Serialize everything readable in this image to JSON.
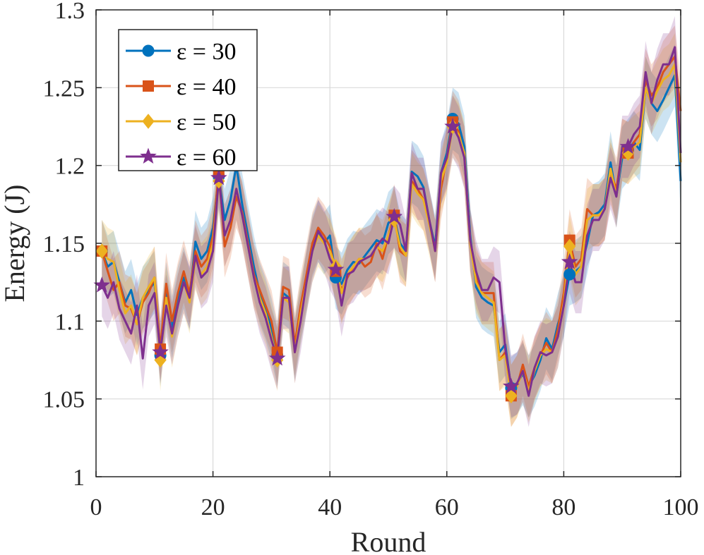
{
  "chart_data": {
    "type": "line",
    "title": "",
    "xlabel": "Round",
    "ylabel": "Energy (J)",
    "xlim": [
      0,
      100
    ],
    "ylim": [
      1,
      1.3
    ],
    "xticks": [
      0,
      20,
      40,
      60,
      80,
      100
    ],
    "xtick_labels": [
      "0",
      "20",
      "40",
      "60",
      "80",
      "100"
    ],
    "yticks": [
      1,
      1.05,
      1.1,
      1.15,
      1.2,
      1.25,
      1.3
    ],
    "ytick_labels": [
      "1",
      "1.05",
      "1.1",
      "1.15",
      "1.2",
      "1.25",
      "1.3"
    ],
    "grid": true,
    "legend_position": "top-left",
    "x": [
      1,
      2,
      3,
      4,
      5,
      6,
      7,
      8,
      9,
      10,
      11,
      12,
      13,
      14,
      15,
      16,
      17,
      18,
      19,
      20,
      21,
      22,
      23,
      24,
      25,
      26,
      27,
      28,
      29,
      30,
      31,
      32,
      33,
      34,
      35,
      36,
      37,
      38,
      39,
      40,
      41,
      42,
      43,
      44,
      45,
      46,
      47,
      48,
      49,
      50,
      51,
      52,
      53,
      54,
      55,
      56,
      57,
      58,
      59,
      60,
      61,
      62,
      63,
      64,
      65,
      66,
      67,
      68,
      69,
      70,
      71,
      72,
      73,
      74,
      75,
      76,
      77,
      78,
      79,
      80,
      81,
      82,
      83,
      84,
      85,
      86,
      87,
      88,
      89,
      90,
      91,
      92,
      93,
      94,
      95,
      96,
      97,
      98,
      99,
      100
    ],
    "marker_rounds": [
      1,
      11,
      21,
      31,
      41,
      51,
      61,
      71,
      81,
      91
    ],
    "series": [
      {
        "name": "ε = 30",
        "color": "#0072BD",
        "marker": "circle",
        "values": [
          1.145,
          1.135,
          1.138,
          1.125,
          1.112,
          1.12,
          1.104,
          1.115,
          1.12,
          1.125,
          1.078,
          1.118,
          1.096,
          1.115,
          1.128,
          1.114,
          1.151,
          1.14,
          1.145,
          1.16,
          1.193,
          1.165,
          1.178,
          1.2,
          1.175,
          1.155,
          1.135,
          1.118,
          1.108,
          1.095,
          1.078,
          1.118,
          1.115,
          1.082,
          1.106,
          1.126,
          1.148,
          1.158,
          1.15,
          1.155,
          1.128,
          1.124,
          1.133,
          1.138,
          1.137,
          1.142,
          1.147,
          1.152,
          1.15,
          1.163,
          1.167,
          1.15,
          1.145,
          1.196,
          1.193,
          1.186,
          1.165,
          1.148,
          1.195,
          1.208,
          1.23,
          1.227,
          1.212,
          1.155,
          1.122,
          1.115,
          1.112,
          1.11,
          1.08,
          1.085,
          1.057,
          1.06,
          1.066,
          1.058,
          1.065,
          1.075,
          1.089,
          1.082,
          1.098,
          1.11,
          1.13,
          1.132,
          1.135,
          1.15,
          1.168,
          1.17,
          1.175,
          1.202,
          1.18,
          1.205,
          1.21,
          1.215,
          1.21,
          1.25,
          1.24,
          1.235,
          1.242,
          1.25,
          1.258,
          1.19
        ]
      },
      {
        "name": "ε = 40",
        "color": "#D95319",
        "marker": "square",
        "values": [
          1.145,
          1.132,
          1.12,
          1.125,
          1.11,
          1.108,
          1.098,
          1.112,
          1.118,
          1.128,
          1.082,
          1.124,
          1.1,
          1.118,
          1.132,
          1.118,
          1.145,
          1.135,
          1.14,
          1.155,
          1.196,
          1.148,
          1.16,
          1.18,
          1.17,
          1.15,
          1.13,
          1.12,
          1.11,
          1.1,
          1.08,
          1.122,
          1.12,
          1.085,
          1.11,
          1.13,
          1.15,
          1.16,
          1.155,
          1.148,
          1.132,
          1.12,
          1.128,
          1.135,
          1.14,
          1.135,
          1.138,
          1.15,
          1.14,
          1.155,
          1.168,
          1.145,
          1.142,
          1.19,
          1.185,
          1.178,
          1.165,
          1.145,
          1.185,
          1.205,
          1.228,
          1.222,
          1.205,
          1.152,
          1.128,
          1.118,
          1.118,
          1.118,
          1.075,
          1.08,
          1.052,
          1.058,
          1.072,
          1.058,
          1.07,
          1.078,
          1.086,
          1.08,
          1.095,
          1.118,
          1.152,
          1.135,
          1.14,
          1.172,
          1.168,
          1.168,
          1.172,
          1.195,
          1.185,
          1.21,
          1.208,
          1.215,
          1.22,
          1.255,
          1.245,
          1.25,
          1.26,
          1.265,
          1.27,
          1.235
        ]
      },
      {
        "name": "ε = 50",
        "color": "#EDB120",
        "marker": "diamond",
        "values": [
          1.145,
          1.14,
          1.138,
          1.12,
          1.105,
          1.11,
          1.098,
          1.115,
          1.122,
          1.128,
          1.075,
          1.115,
          1.09,
          1.11,
          1.125,
          1.112,
          1.14,
          1.13,
          1.135,
          1.15,
          1.19,
          1.155,
          1.165,
          1.185,
          1.168,
          1.148,
          1.128,
          1.115,
          1.105,
          1.09,
          1.075,
          1.115,
          1.112,
          1.08,
          1.105,
          1.125,
          1.145,
          1.155,
          1.15,
          1.145,
          1.135,
          1.118,
          1.13,
          1.135,
          1.14,
          1.14,
          1.142,
          1.148,
          1.145,
          1.155,
          1.165,
          1.148,
          1.142,
          1.188,
          1.182,
          1.178,
          1.162,
          1.145,
          1.19,
          1.202,
          1.225,
          1.22,
          1.208,
          1.15,
          1.125,
          1.118,
          1.115,
          1.112,
          1.075,
          1.078,
          1.052,
          1.058,
          1.068,
          1.055,
          1.068,
          1.078,
          1.082,
          1.08,
          1.09,
          1.112,
          1.148,
          1.13,
          1.135,
          1.165,
          1.168,
          1.168,
          1.172,
          1.198,
          1.18,
          1.21,
          1.208,
          1.212,
          1.215,
          1.25,
          1.24,
          1.248,
          1.255,
          1.258,
          1.265,
          1.202
        ]
      },
      {
        "name": "ε = 60",
        "color": "#7E2F8E",
        "marker": "star",
        "values": [
          1.123,
          1.115,
          1.125,
          1.108,
          1.1,
          1.092,
          1.11,
          1.076,
          1.11,
          1.118,
          1.08,
          1.11,
          1.092,
          1.11,
          1.125,
          1.115,
          1.142,
          1.128,
          1.132,
          1.145,
          1.192,
          1.155,
          1.165,
          1.185,
          1.168,
          1.148,
          1.128,
          1.112,
          1.102,
          1.088,
          1.076,
          1.115,
          1.115,
          1.08,
          1.1,
          1.125,
          1.145,
          1.158,
          1.152,
          1.14,
          1.133,
          1.11,
          1.13,
          1.132,
          1.138,
          1.14,
          1.142,
          1.148,
          1.153,
          1.15,
          1.167,
          1.162,
          1.145,
          1.195,
          1.185,
          1.185,
          1.165,
          1.145,
          1.195,
          1.205,
          1.225,
          1.218,
          1.205,
          1.152,
          1.132,
          1.12,
          1.12,
          1.128,
          1.125,
          1.082,
          1.058,
          1.06,
          1.068,
          1.052,
          1.07,
          1.08,
          1.078,
          1.08,
          1.09,
          1.11,
          1.138,
          1.125,
          1.125,
          1.155,
          1.165,
          1.165,
          1.172,
          1.192,
          1.18,
          1.212,
          1.212,
          1.22,
          1.225,
          1.26,
          1.24,
          1.255,
          1.265,
          1.265,
          1.276,
          1.208
        ]
      }
    ],
    "band_halfwidth": 0.02
  }
}
